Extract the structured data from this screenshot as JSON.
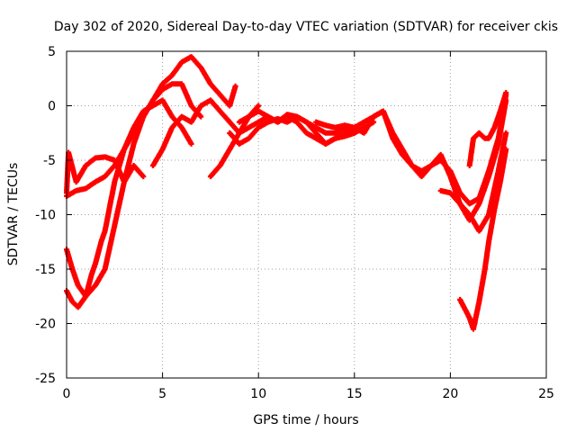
{
  "chart_data": {
    "type": "scatter",
    "title": "Day 302 of 2020, Sidereal Day-to-day VTEC variation (SDTVAR) for receiver ckis",
    "xlabel": "GPS time / hours",
    "ylabel": "SDTVAR / TECUs",
    "xlim": [
      0,
      25
    ],
    "ylim": [
      -25,
      5
    ],
    "xticks": [
      0,
      5,
      10,
      15,
      20,
      25
    ],
    "yticks": [
      -25,
      -20,
      -15,
      -10,
      -5,
      0,
      5
    ],
    "grid": true,
    "marker": "+",
    "colors": {
      "series": "#ff0000",
      "grid": "#a0a0a0",
      "axis": "#000000"
    },
    "series": [
      {
        "x": [
          0.0,
          0.5,
          1.0,
          1.5,
          2.0,
          2.5,
          3.0,
          3.5,
          4.0,
          4.5,
          5.0,
          5.5,
          6.0,
          6.5,
          7.0,
          7.5,
          8.0,
          8.5,
          8.8
        ],
        "y": [
          -8.3,
          -7.8,
          -7.6,
          -7.0,
          -6.5,
          -5.5,
          -4.0,
          -2.5,
          -1.0,
          0.5,
          2.0,
          2.8,
          4.0,
          4.5,
          3.5,
          2.0,
          1.0,
          0.0,
          1.8
        ]
      },
      {
        "x": [
          0.0,
          0.3,
          0.6,
          1.0,
          1.5,
          2.0,
          2.5,
          3.0,
          3.5,
          4.0,
          4.5,
          5.0,
          5.5,
          6.0,
          6.5,
          7.0
        ],
        "y": [
          -17.0,
          -18.0,
          -18.5,
          -17.5,
          -16.5,
          -15.0,
          -11.0,
          -7.0,
          -3.5,
          -1.0,
          0.5,
          1.5,
          2.0,
          2.0,
          0.0,
          -1.0
        ]
      },
      {
        "x": [
          0.0,
          0.3,
          0.6,
          1.0,
          1.3,
          1.5,
          1.8,
          2.0,
          2.5,
          3.0,
          3.5,
          4.0,
          4.5,
          5.0,
          5.5,
          6.0,
          6.5
        ],
        "y": [
          -13.2,
          -15.0,
          -16.5,
          -17.5,
          -15.5,
          -14.5,
          -12.5,
          -11.5,
          -7.0,
          -4.0,
          -2.0,
          -0.5,
          0.0,
          0.5,
          -1.0,
          -2.0,
          -3.5
        ]
      },
      {
        "x": [
          0.0,
          0.1,
          0.5,
          1.0,
          1.5,
          2.0,
          2.5,
          3.0,
          3.5,
          4.0
        ],
        "y": [
          -8.0,
          -4.3,
          -7.0,
          -5.5,
          -4.8,
          -4.7,
          -5.0,
          -7.0,
          -5.5,
          -6.5
        ]
      },
      {
        "x": [
          4.5,
          5.0,
          5.5,
          6.0,
          6.5,
          7.0,
          7.5,
          8.0,
          8.5,
          9.0,
          9.5,
          10.0
        ],
        "y": [
          -5.5,
          -4.0,
          -2.0,
          -1.0,
          -1.5,
          0.0,
          0.5,
          -0.5,
          -1.5,
          -2.5,
          -1.0,
          0.0
        ]
      },
      {
        "x": [
          7.5,
          8.0,
          8.5,
          9.0,
          9.5,
          10.0,
          10.5,
          11.0,
          11.5,
          12.0,
          12.5,
          13.0,
          13.5,
          14.0,
          14.5,
          15.0,
          15.5,
          16.0
        ],
        "y": [
          -6.5,
          -5.5,
          -4.0,
          -2.5,
          -2.0,
          -1.5,
          -1.0,
          -1.5,
          -0.8,
          -1.0,
          -1.5,
          -2.0,
          -2.5,
          -2.5,
          -2.0,
          -2.5,
          -2.0,
          -1.5
        ]
      },
      {
        "x": [
          8.5,
          9.0,
          9.5,
          10.0,
          10.5,
          11.0,
          11.5,
          12.0,
          12.5,
          13.0,
          13.5,
          14.0,
          14.5,
          15.0
        ],
        "y": [
          -2.5,
          -3.5,
          -3.0,
          -2.0,
          -1.5,
          -1.2,
          -1.5,
          -1.0,
          -1.5,
          -2.5,
          -3.5,
          -3.0,
          -2.8,
          -2.5
        ]
      },
      {
        "x": [
          9.0,
          9.5,
          10.0,
          10.5,
          11.0,
          11.5,
          12.0,
          12.5,
          13.0,
          13.5,
          14.0,
          14.5,
          15.0,
          15.5,
          16.0,
          16.5,
          17.0,
          17.5,
          18.0,
          18.5,
          19.0,
          19.5,
          20.0,
          20.5,
          21.0,
          21.5,
          22.0,
          22.5,
          22.9
        ],
        "y": [
          -1.5,
          -1.0,
          -0.5,
          -1.0,
          -1.5,
          -1.0,
          -1.5,
          -2.5,
          -3.0,
          -3.5,
          -3.0,
          -2.5,
          -2.0,
          -1.5,
          -1.0,
          -0.5,
          -3.0,
          -4.5,
          -5.5,
          -6.0,
          -5.5,
          -5.0,
          -6.0,
          -8.0,
          -9.0,
          -8.5,
          -6.0,
          -3.0,
          1.0
        ]
      },
      {
        "x": [
          13.0,
          13.5,
          14.0,
          14.5,
          15.0,
          15.5,
          16.0,
          16.5,
          17.0,
          17.5,
          18.0,
          18.5,
          19.0,
          19.5,
          20.0,
          20.5,
          21.0,
          21.5,
          22.0,
          22.5,
          22.9
        ],
        "y": [
          -1.5,
          -1.8,
          -2.0,
          -1.8,
          -2.0,
          -2.5,
          -1.0,
          -0.5,
          -2.5,
          -4.0,
          -5.5,
          -6.5,
          -5.5,
          -4.5,
          -6.5,
          -9.0,
          -10.5,
          -9.0,
          -6.5,
          -3.5,
          0.5
        ]
      },
      {
        "x": [
          19.5,
          20.0,
          20.5,
          21.0,
          21.5,
          22.0,
          22.5,
          22.9
        ],
        "y": [
          -7.8,
          -8.0,
          -9.0,
          -10.0,
          -11.5,
          -10.0,
          -6.0,
          -2.5
        ]
      },
      {
        "x": [
          20.5,
          20.8,
          21.0,
          21.2,
          21.5,
          21.8,
          22.0,
          22.3,
          22.6,
          22.9
        ],
        "y": [
          -17.8,
          -18.8,
          -19.5,
          -20.5,
          -18.0,
          -15.0,
          -12.5,
          -9.5,
          -7.0,
          -4.0
        ]
      },
      {
        "x": [
          21.0,
          21.2,
          21.5,
          21.8,
          22.0,
          22.3,
          22.6,
          22.9
        ],
        "y": [
          -5.5,
          -3.0,
          -2.5,
          -3.0,
          -3.0,
          -2.0,
          -0.5,
          1.2
        ]
      }
    ]
  }
}
